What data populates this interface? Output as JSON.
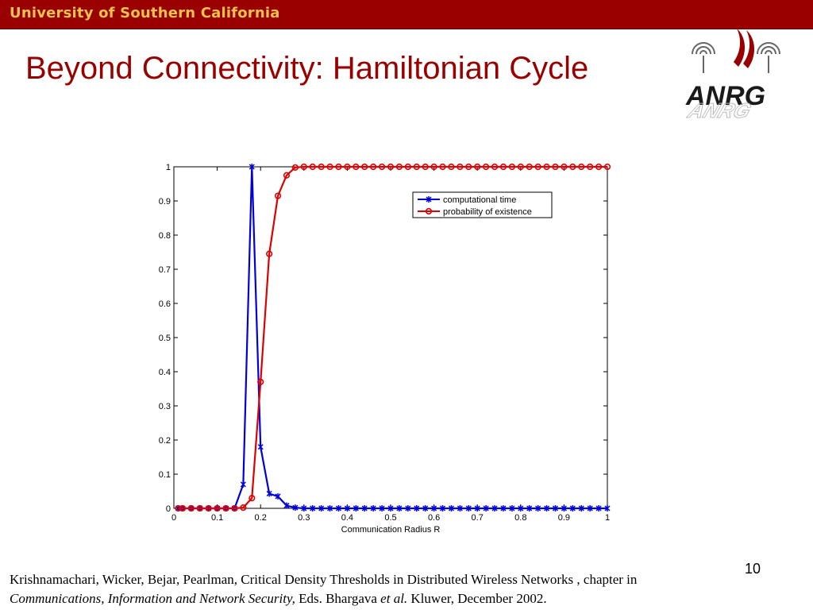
{
  "header": {
    "institution": "University of Southern California"
  },
  "slide": {
    "title": "Beyond Connectivity: Hamiltonian Cycle",
    "page_number": "10",
    "logo_text": "ANRG"
  },
  "citation": {
    "part1": "Krishnamachari, Wicker, Bejar, Pearlman, Critical Density Thresholds in Distributed Wireless Networks , chapter in",
    "part2_italic": "Communications, Information and Network Security,",
    "part3": " Eds. Bhargava ",
    "part4_italic": "et al.",
    "part5": " Kluwer, December 2002."
  },
  "colors": {
    "banner": "#990000",
    "banner_text": "#f2c14e",
    "title": "#990000",
    "series1": "#0000dd",
    "series2": "#dd0000"
  },
  "chart_data": {
    "type": "line",
    "title": "",
    "xlabel": "Communication Radius R",
    "ylabel": "",
    "xlim": [
      0,
      1
    ],
    "ylim": [
      0,
      1
    ],
    "xticks": [
      0,
      0.1,
      0.2,
      0.3,
      0.4,
      0.5,
      0.6,
      0.7,
      0.8,
      0.9,
      1
    ],
    "xtick_labels": [
      "0",
      "0.1",
      "0.2",
      "0.3",
      "0.4",
      "0.5",
      "0.6",
      "0.7",
      "0.8",
      "0.9",
      "1"
    ],
    "yticks": [
      0,
      0.1,
      0.2,
      0.3,
      0.4,
      0.5,
      0.6,
      0.7,
      0.8,
      0.9,
      1
    ],
    "ytick_labels": [
      "0",
      "0.1",
      "0.2",
      "0.3",
      "0.4",
      "0.5",
      "0.6",
      "0.7",
      "0.8",
      "0.9",
      "1"
    ],
    "grid": false,
    "legend_position": "top-right",
    "series": [
      {
        "name": "computational time",
        "color": "#0000dd",
        "marker": "x",
        "x": [
          0.01,
          0.02,
          0.04,
          0.06,
          0.08,
          0.1,
          0.12,
          0.14,
          0.16,
          0.18,
          0.2,
          0.22,
          0.24,
          0.26,
          0.28,
          0.3,
          0.32,
          0.34,
          0.36,
          0.38,
          0.4,
          0.42,
          0.44,
          0.46,
          0.48,
          0.5,
          0.52,
          0.54,
          0.56,
          0.58,
          0.6,
          0.62,
          0.64,
          0.66,
          0.68,
          0.7,
          0.72,
          0.74,
          0.76,
          0.78,
          0.8,
          0.82,
          0.84,
          0.86,
          0.88,
          0.9,
          0.92,
          0.94,
          0.96,
          0.98,
          1.0
        ],
        "y": [
          0,
          0,
          0,
          0,
          0,
          0,
          0,
          0,
          0.07,
          1,
          0.18,
          0.043,
          0.035,
          0.008,
          0.002,
          0,
          0,
          0,
          0,
          0,
          0,
          0,
          0,
          0,
          0,
          0,
          0,
          0,
          0,
          0,
          0,
          0,
          0,
          0,
          0,
          0,
          0,
          0,
          0,
          0,
          0,
          0,
          0,
          0,
          0,
          0,
          0,
          0,
          0,
          0,
          0
        ]
      },
      {
        "name": "probability of existence",
        "color": "#dd0000",
        "marker": "o",
        "x": [
          0.01,
          0.02,
          0.04,
          0.06,
          0.08,
          0.1,
          0.12,
          0.14,
          0.16,
          0.18,
          0.2,
          0.22,
          0.24,
          0.26,
          0.28,
          0.3,
          0.32,
          0.34,
          0.36,
          0.38,
          0.4,
          0.42,
          0.44,
          0.46,
          0.48,
          0.5,
          0.52,
          0.54,
          0.56,
          0.58,
          0.6,
          0.62,
          0.64,
          0.66,
          0.68,
          0.7,
          0.72,
          0.74,
          0.76,
          0.78,
          0.8,
          0.82,
          0.84,
          0.86,
          0.88,
          0.9,
          0.92,
          0.94,
          0.96,
          0.98,
          1.0
        ],
        "y": [
          0,
          0,
          0,
          0,
          0,
          0,
          0,
          0,
          0.002,
          0.03,
          0.37,
          0.745,
          0.915,
          0.975,
          0.998,
          1,
          1,
          1,
          1,
          1,
          1,
          1,
          1,
          1,
          1,
          1,
          1,
          1,
          1,
          1,
          1,
          1,
          1,
          1,
          1,
          1,
          1,
          1,
          1,
          1,
          1,
          1,
          1,
          1,
          1,
          1,
          1,
          1,
          1,
          1,
          1
        ]
      }
    ]
  }
}
